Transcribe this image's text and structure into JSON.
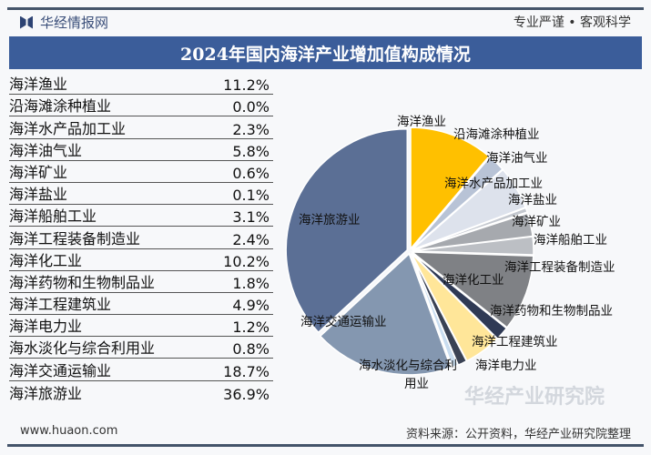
{
  "header": {
    "brand": "华经情报网",
    "slogan": "专业严谨 • 客观科学"
  },
  "chart_data": {
    "type": "pie",
    "title": "2024年国内海洋产业增加值构成情况",
    "unit": "%",
    "categories": [
      "海洋渔业",
      "沿海滩涂种植业",
      "海洋水产品加工业",
      "海洋油气业",
      "海洋矿业",
      "海洋盐业",
      "海洋船舶工业",
      "海洋工程装备制造业",
      "海洋化工业",
      "海洋药物和生物制品业",
      "海洋工程建筑业",
      "海洋电力业",
      "海水淡化与综合利用业",
      "海洋交通运输业",
      "海洋旅游业"
    ],
    "values": [
      11.2,
      0.0,
      2.3,
      5.8,
      0.6,
      0.1,
      3.1,
      2.4,
      10.2,
      1.8,
      4.9,
      1.2,
      0.8,
      18.7,
      36.9
    ],
    "value_labels": [
      "11.2%",
      "0.0%",
      "2.3%",
      "5.8%",
      "0.6%",
      "0.1%",
      "3.1%",
      "2.4%",
      "10.2%",
      "1.8%",
      "4.9%",
      "1.2%",
      "0.8%",
      "18.7%",
      "36.9%"
    ],
    "colors": [
      "#FFC000",
      "#C9D1E0",
      "#B8C3D6",
      "#DDE2EC",
      "#C4C8CF",
      "#D5D8DD",
      "#A6A9AE",
      "#BCBFC4",
      "#7F8185",
      "#2F3A55",
      "#FFE699",
      "#3A4254",
      "#C9DDF0",
      "#8497B0",
      "#5B6F95"
    ],
    "start": "12 o'clock, clockwise",
    "legend": "none"
  },
  "footer": {
    "url": "www.huaon.com",
    "source": "资料来源：公开资料，华经产业研究院整理",
    "watermark": "华经产业研究院"
  }
}
